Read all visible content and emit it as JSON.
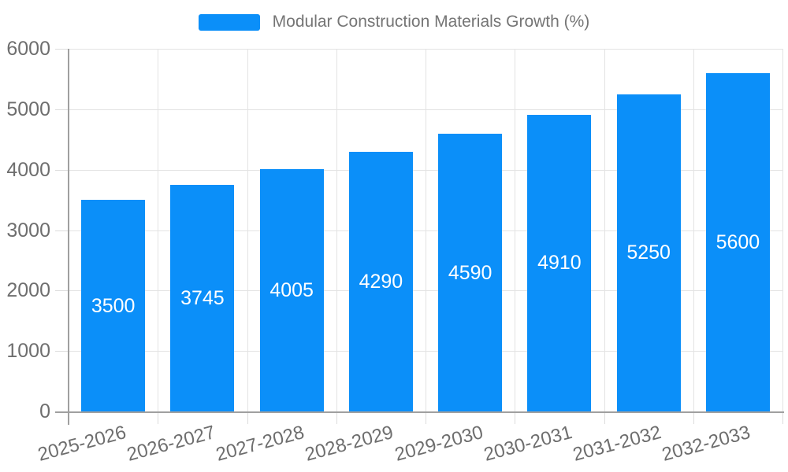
{
  "chart_data": {
    "type": "bar",
    "title": "Modular Construction Materials Growth (%)",
    "legend_position": "top-center",
    "categories": [
      "2025-2026",
      "2026-2027",
      "2027-2028",
      "2028-2029",
      "2029-2030",
      "2030-2031",
      "2031-2032",
      "2032-2033"
    ],
    "series": [
      {
        "name": "Modular Construction Materials Growth (%)",
        "values": [
          3500,
          3745,
          4005,
          4290,
          4590,
          4910,
          5250,
          5600
        ]
      }
    ],
    "value_labels": [
      "3500",
      "3745",
      "4005",
      "4290",
      "4590",
      "4910",
      "5250",
      "5600"
    ],
    "xlabel": "",
    "ylabel": "",
    "ylim": [
      0,
      6000
    ],
    "yticks": [
      0,
      1000,
      2000,
      3000,
      4000,
      5000,
      6000
    ],
    "grid": "on",
    "xtick_rotation_deg": 15,
    "bar_color": "#0b8ff9",
    "value_label_color": "#ffffff"
  }
}
